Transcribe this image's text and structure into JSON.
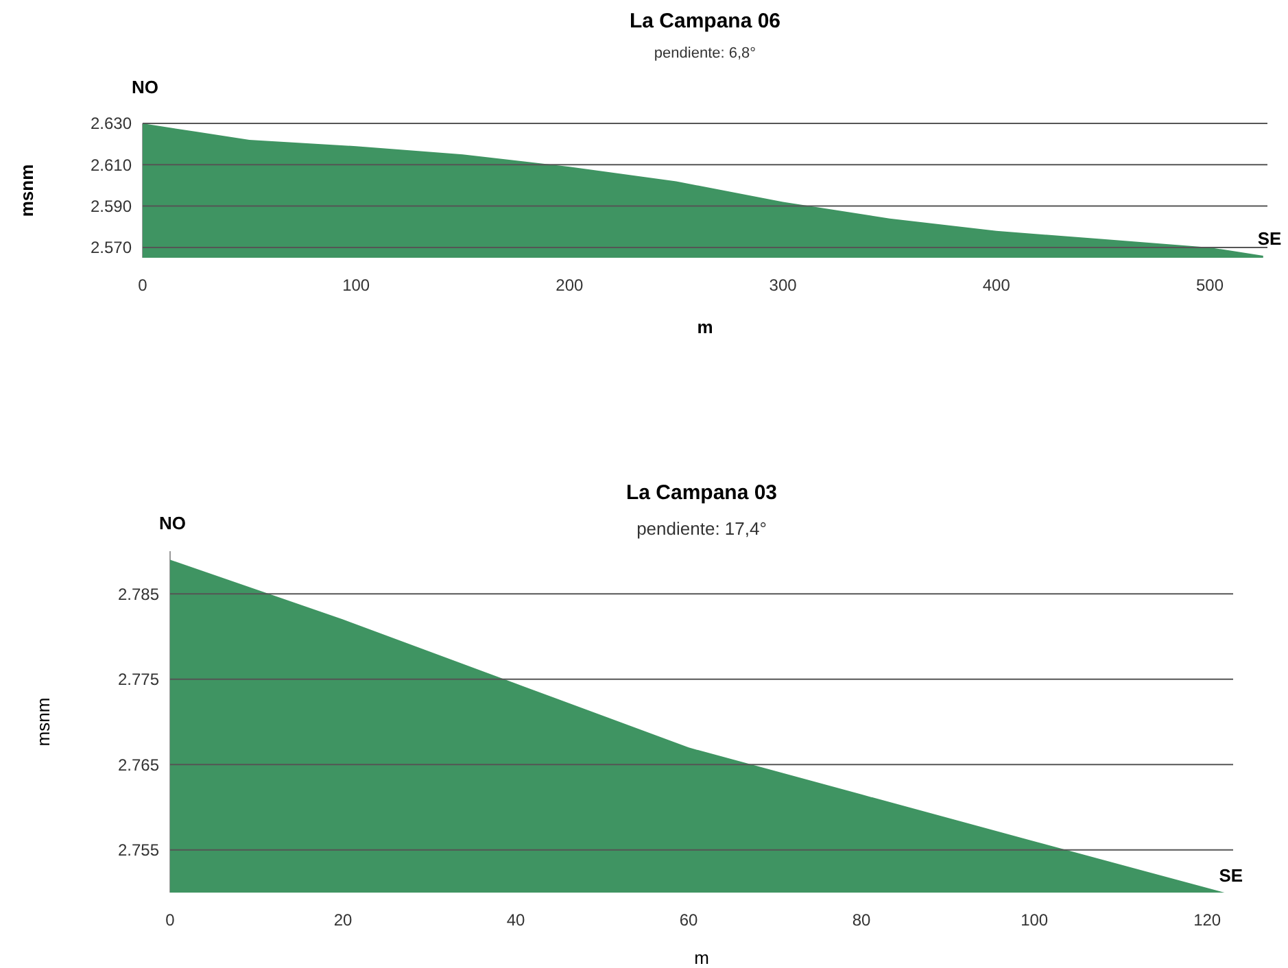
{
  "chart_data": [
    {
      "type": "area",
      "title": "La Campana 06",
      "subtitle": "pendiente: 6,8°",
      "xlabel": "m",
      "ylabel": "msnm",
      "grid": "y",
      "color": "#3f9462",
      "x": [
        0,
        25,
        50,
        100,
        150,
        200,
        250,
        300,
        350,
        400,
        450,
        500,
        525
      ],
      "values": [
        2630,
        2626,
        2622,
        2619,
        2615,
        2609,
        2602,
        2592,
        2584,
        2578,
        2574,
        2570,
        2566
      ],
      "xlim": [
        0,
        527
      ],
      "xticks": [
        0,
        100,
        200,
        300,
        400,
        500
      ],
      "ylim": [
        2565,
        2630
      ],
      "yticks": [
        {
          "value": 2570,
          "label": "2.570"
        },
        {
          "value": 2590,
          "label": "2.590"
        },
        {
          "value": 2610,
          "label": "2.610"
        },
        {
          "value": 2630,
          "label": "2.630"
        }
      ],
      "annotations": [
        {
          "text": "NO",
          "x": 0,
          "y": 2630
        },
        {
          "text": "SE",
          "x": 525,
          "y": 2566
        }
      ]
    },
    {
      "type": "area",
      "title": "La Campana 03",
      "subtitle": "pendiente: 17,4°",
      "xlabel": "m",
      "ylabel": "msnm",
      "grid": "y",
      "color": "#3f9462",
      "x": [
        0,
        20,
        40,
        60,
        80,
        100,
        122
      ],
      "values": [
        2789,
        2782,
        2774.5,
        2767,
        2761.5,
        2756,
        2750
      ],
      "xlim": [
        0,
        123
      ],
      "xticks": [
        0,
        20,
        40,
        60,
        80,
        100,
        120
      ],
      "ylim": [
        2750,
        2790
      ],
      "yticks": [
        {
          "value": 2755,
          "label": "2.755"
        },
        {
          "value": 2765,
          "label": "2.765"
        },
        {
          "value": 2775,
          "label": "2.775"
        },
        {
          "value": 2785,
          "label": "2.785"
        }
      ],
      "annotations": [
        {
          "text": "NO",
          "x": 0,
          "y": 2789
        },
        {
          "text": "SE",
          "x": 122,
          "y": 2750
        }
      ]
    }
  ]
}
